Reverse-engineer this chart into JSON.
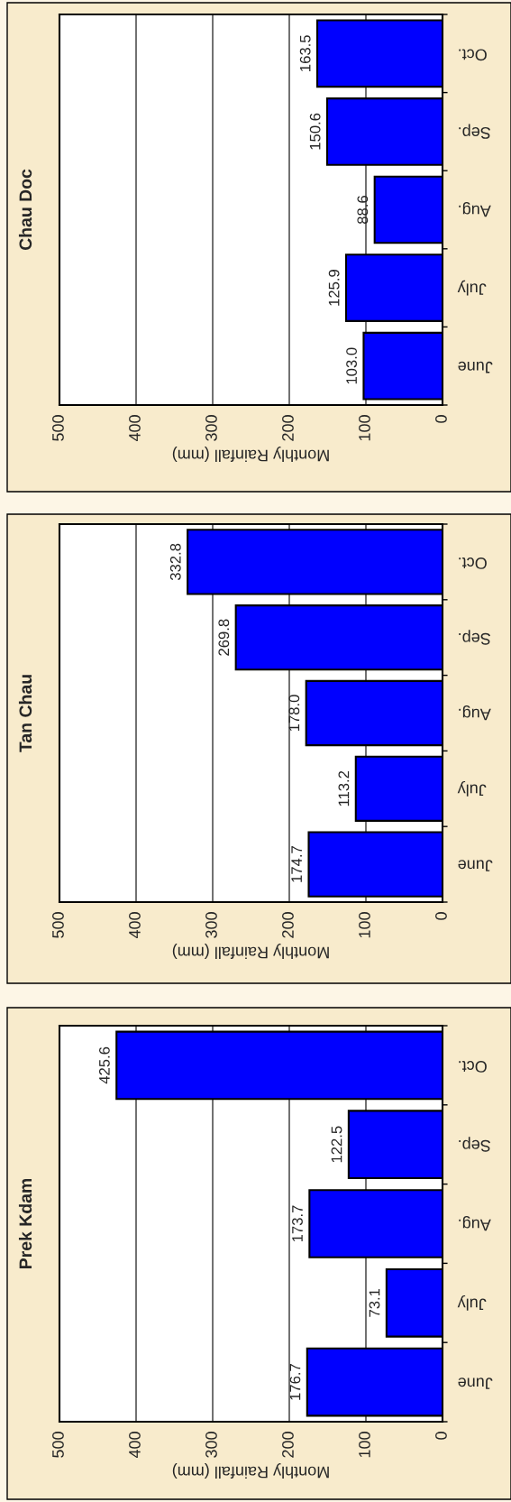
{
  "chart_data": [
    {
      "type": "bar",
      "title": "Chau Doc",
      "xlabel": "Monthly Rainfall (mm)",
      "orientation": "horizontal",
      "categories": [
        "Oct.",
        "Sep.",
        "Aug.",
        "July",
        "June"
      ],
      "values": [
        163.5,
        150.6,
        88.6,
        125.9,
        103.0
      ],
      "color": "#0000ff",
      "value_labels": [
        "163.5",
        "150.6",
        "88.6",
        "125.9",
        "103.0"
      ],
      "xlim": [
        500,
        0
      ],
      "xticks": [
        500,
        400,
        300,
        200,
        100,
        0
      ],
      "grid": "x"
    },
    {
      "type": "bar",
      "title": "Tan Chau",
      "xlabel": "Monthly Rainfall (mm)",
      "orientation": "horizontal",
      "categories": [
        "Oct.",
        "Sep.",
        "Aug.",
        "July",
        "June"
      ],
      "values": [
        332.8,
        269.8,
        178.0,
        113.2,
        174.7
      ],
      "color": "#0000ff",
      "value_labels": [
        "332.8",
        "269.8",
        "178.0",
        "113.2",
        "174.7"
      ],
      "xlim": [
        500,
        0
      ],
      "xticks": [
        500,
        400,
        300,
        200,
        100,
        0
      ],
      "grid": "x"
    },
    {
      "type": "bar",
      "title": "Prek Kdam",
      "xlabel": "Monthly Rainfall (mm)",
      "orientation": "horizontal",
      "categories": [
        "Oct.",
        "Sep.",
        "Aug.",
        "July",
        "June"
      ],
      "values": [
        425.6,
        122.5,
        173.7,
        73.1,
        176.7
      ],
      "color": "#0000ff",
      "value_labels": [
        "425.6",
        "122.5",
        "173.7",
        "73.1",
        "176.7"
      ],
      "xlim": [
        500,
        0
      ],
      "xticks": [
        500,
        400,
        300,
        200,
        100,
        0
      ],
      "grid": "x"
    }
  ]
}
